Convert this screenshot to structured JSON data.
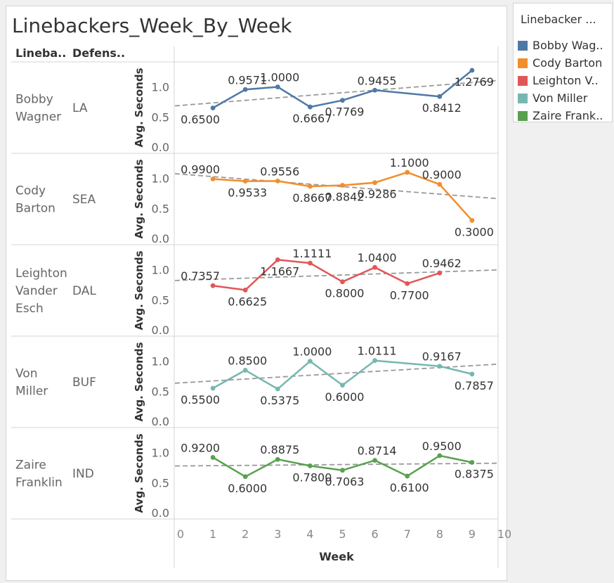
{
  "chart_data": {
    "type": "line",
    "title": "Linebackers_Week_By_Week",
    "row_headers": [
      "Lineba..",
      "Defens.."
    ],
    "xlabel": "Week",
    "ylabel": "Avg. Seconds",
    "xlim": [
      0,
      10
    ],
    "xticks": [
      "0",
      "1",
      "2",
      "3",
      "4",
      "5",
      "6",
      "7",
      "8",
      "9",
      "10"
    ],
    "ylim": [
      0,
      1.3
    ],
    "yticks": [
      "0.0",
      "0.5",
      "1.0"
    ],
    "trend_lines": "dashed-grey",
    "panels": [
      {
        "linebacker": [
          "Bobby",
          "Wagner"
        ],
        "defense": "LA",
        "color": "#4e79a7",
        "x": [
          1,
          2,
          3,
          4,
          5,
          6,
          8,
          9
        ],
        "values": [
          0.65,
          0.9571,
          1.0,
          0.6667,
          0.7769,
          0.9455,
          0.8412,
          1.2769
        ],
        "labels": [
          "0.6500",
          "0.9571",
          "1.0000",
          "0.6667",
          "0.7769",
          "0.9455",
          "0.8412",
          "1.2769"
        ],
        "trend": [
          0.6845,
          1.1064
        ]
      },
      {
        "linebacker": [
          "Cody",
          "Barton"
        ],
        "defense": "SEA",
        "color": "#f28e2b",
        "x": [
          1,
          2,
          3,
          4,
          5,
          6,
          7,
          8,
          9
        ],
        "values": [
          0.99,
          0.9533,
          0.9556,
          0.8667,
          0.8842,
          0.9286,
          1.1,
          0.9,
          0.3
        ],
        "labels": [
          "0.9900",
          "0.9533",
          "0.9556",
          "0.8667",
          "0.8842",
          "0.9286",
          "1.1000",
          "0.9000",
          "0.3000"
        ],
        "trend": [
          1.0777,
          0.6628
        ]
      },
      {
        "linebacker": [
          "Leighton",
          "Vander",
          "Esch"
        ],
        "defense": "DAL",
        "color": "#e15759",
        "x": [
          1,
          2,
          3,
          4,
          5,
          6,
          7,
          8
        ],
        "values": [
          0.7357,
          0.6625,
          1.1667,
          1.1111,
          0.8,
          1.04,
          0.77,
          0.9462
        ],
        "labels": [
          "0.7357",
          "0.6625",
          "1.1667",
          "1.1111",
          "0.8000",
          "1.0400",
          "0.7700",
          "0.9462"
        ],
        "trend": [
          0.8214,
          0.9972
        ]
      },
      {
        "linebacker": [
          "Von",
          "Miller"
        ],
        "defense": "BUF",
        "color": "#76b7b2",
        "x": [
          1,
          2,
          3,
          4,
          5,
          6,
          8,
          9
        ],
        "values": [
          0.55,
          0.85,
          0.5375,
          1.0,
          0.6,
          1.0111,
          0.9167,
          0.7857
        ],
        "labels": [
          "0.5500",
          "0.8500",
          "0.5375",
          "1.0000",
          "0.6000",
          "1.0111",
          "0.9167",
          "0.7857"
        ],
        "trend": [
          0.6337,
          0.9506
        ]
      },
      {
        "linebacker": [
          "Zaire",
          "Franklin"
        ],
        "defense": "IND",
        "color": "#59a14f",
        "x": [
          1,
          2,
          3,
          4,
          5,
          6,
          7,
          8,
          9
        ],
        "values": [
          0.92,
          0.6,
          0.8875,
          0.78,
          0.7063,
          0.8714,
          0.61,
          0.95,
          0.8375
        ],
        "labels": [
          "0.9200",
          "0.6000",
          "0.8875",
          "0.7800",
          "0.7063",
          "0.8714",
          "0.6100",
          "0.9500",
          "0.8375"
        ],
        "trend": [
          0.7773,
          0.8237
        ]
      }
    ]
  },
  "legend": {
    "title": "Linebacker ...",
    "items": [
      {
        "label": "Bobby Wag..",
        "color": "#4e79a7"
      },
      {
        "label": "Cody Barton",
        "color": "#f28e2b"
      },
      {
        "label": "Leighton V..",
        "color": "#e15759"
      },
      {
        "label": "Von Miller",
        "color": "#76b7b2"
      },
      {
        "label": "Zaire Frank..",
        "color": "#59a14f"
      }
    ]
  }
}
